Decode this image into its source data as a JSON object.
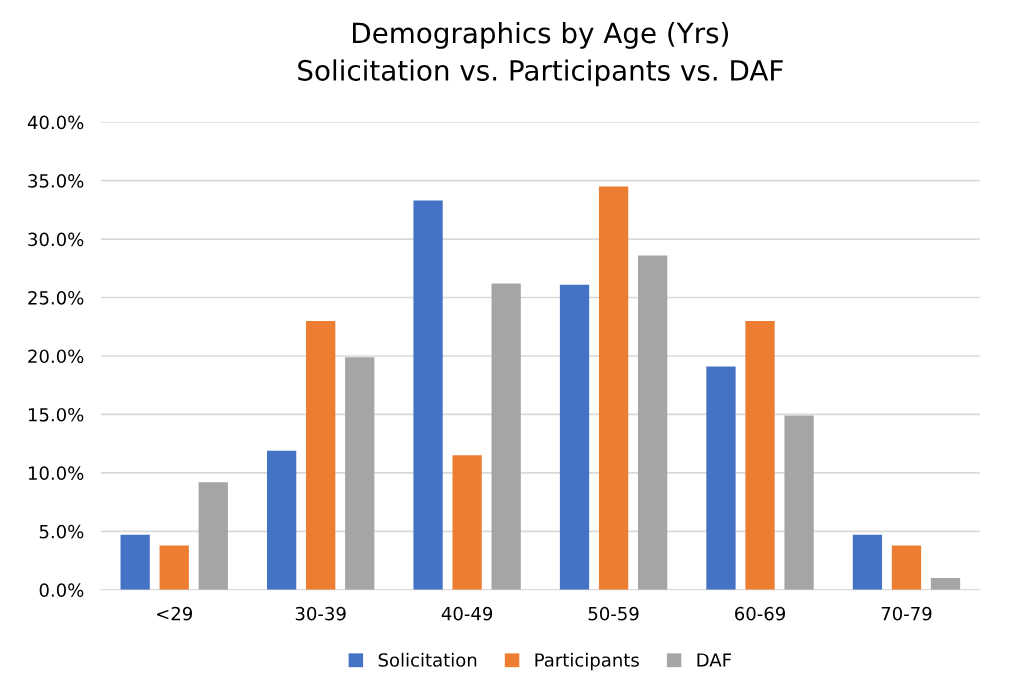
{
  "chart_data": {
    "type": "bar",
    "title": "Demographics by Age (Yrs)\nSolicitation vs. Participants vs. DAF",
    "categories": [
      "<29",
      "30-39",
      "40-49",
      "50-59",
      "60-69",
      "70-79"
    ],
    "series": [
      {
        "name": "Solicitation",
        "color": "#4472c4",
        "values": [
          4.7,
          11.9,
          33.3,
          26.1,
          19.1,
          4.7
        ]
      },
      {
        "name": "Participants",
        "color": "#ed7d31",
        "values": [
          3.8,
          23.0,
          11.5,
          34.5,
          23.0,
          3.8
        ]
      },
      {
        "name": "DAF",
        "color": "#a5a5a5",
        "values": [
          9.2,
          19.9,
          26.2,
          28.6,
          14.9,
          1.0
        ]
      }
    ],
    "ylim": [
      0,
      40
    ],
    "yticks": [
      {
        "value": 0,
        "label": "0.0%"
      },
      {
        "value": 5,
        "label": "5.0%"
      },
      {
        "value": 10,
        "label": "10.0%"
      },
      {
        "value": 15,
        "label": "15.0%"
      },
      {
        "value": 20,
        "label": "20.0%"
      },
      {
        "value": 25,
        "label": "25.0%"
      },
      {
        "value": 30,
        "label": "30.0%"
      },
      {
        "value": 35,
        "label": "35.0%"
      },
      {
        "value": 40,
        "label": "40.0%"
      }
    ],
    "grid": "y",
    "legend": "bottom"
  }
}
